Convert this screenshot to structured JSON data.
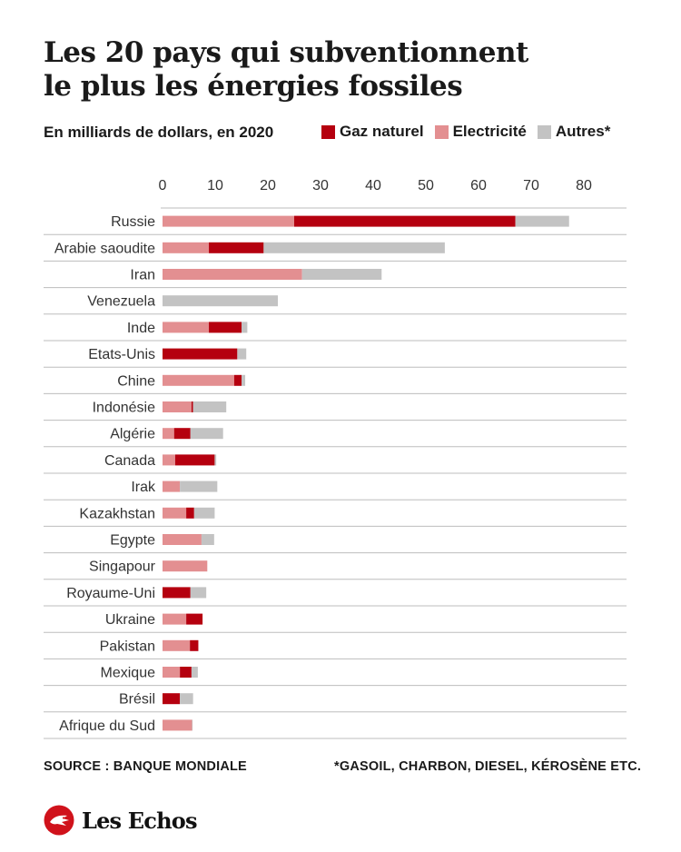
{
  "header": {
    "title_line1": "Les 20 pays qui subventionnent",
    "title_line2": "le plus les énergies fossiles",
    "subtitle": "En milliards de dollars, en 2020"
  },
  "legend": [
    {
      "label": "Gaz naturel",
      "color": "#b5000f"
    },
    {
      "label": "Electricité",
      "color": "#e38f91"
    },
    {
      "label": "Autres*",
      "color": "#c3c3c3"
    }
  ],
  "chart_data": {
    "type": "bar",
    "orientation": "horizontal",
    "stacked": true,
    "categories": [
      "Russie",
      "Arabie saoudite",
      "Iran",
      "Venezuela",
      "Inde",
      "Etats-Unis",
      "Chine",
      "Indonésie",
      "Algérie",
      "Canada",
      "Irak",
      "Kazakhstan",
      "Egypte",
      "Singapour",
      "Royaume-Uni",
      "Ukraine",
      "Pakistan",
      "Mexique",
      "Brésil",
      "Afrique du Sud"
    ],
    "series": [
      {
        "name": "Electricité",
        "values": [
          25,
          8.8,
          26.5,
          0,
          8.8,
          0,
          13.6,
          5.5,
          2.2,
          2.4,
          3.3,
          4.5,
          7.4,
          8.5,
          0,
          4.5,
          5.2,
          3.3,
          0,
          5.6
        ]
      },
      {
        "name": "Gaz naturel",
        "values": [
          42,
          10.4,
          0,
          0,
          6.2,
          14.2,
          1.4,
          0.3,
          3.1,
          7.5,
          0,
          1.5,
          0,
          0,
          5.3,
          3.1,
          1.6,
          2.2,
          3.3,
          0
        ]
      },
      {
        "name": "Autres*",
        "values": [
          10.2,
          34.4,
          15.1,
          21.9,
          1.1,
          1.7,
          0.7,
          6.3,
          6.2,
          0.3,
          7.1,
          3.9,
          2.4,
          0,
          3.0,
          0,
          0,
          1.2,
          2.5,
          0.1
        ]
      }
    ],
    "xlim": [
      0,
      80
    ],
    "xticks": [
      "0",
      "10",
      "20",
      "30",
      "40",
      "50",
      "60",
      "70",
      "80"
    ],
    "axis_position": "top",
    "grid": false
  },
  "footer": {
    "source": "SOURCE : BANQUE MONDIALE",
    "footnote": "*GASOIL, CHARBON, DIESEL, KÉROSÈNE ETC.",
    "logo_text": "Les Echos"
  }
}
